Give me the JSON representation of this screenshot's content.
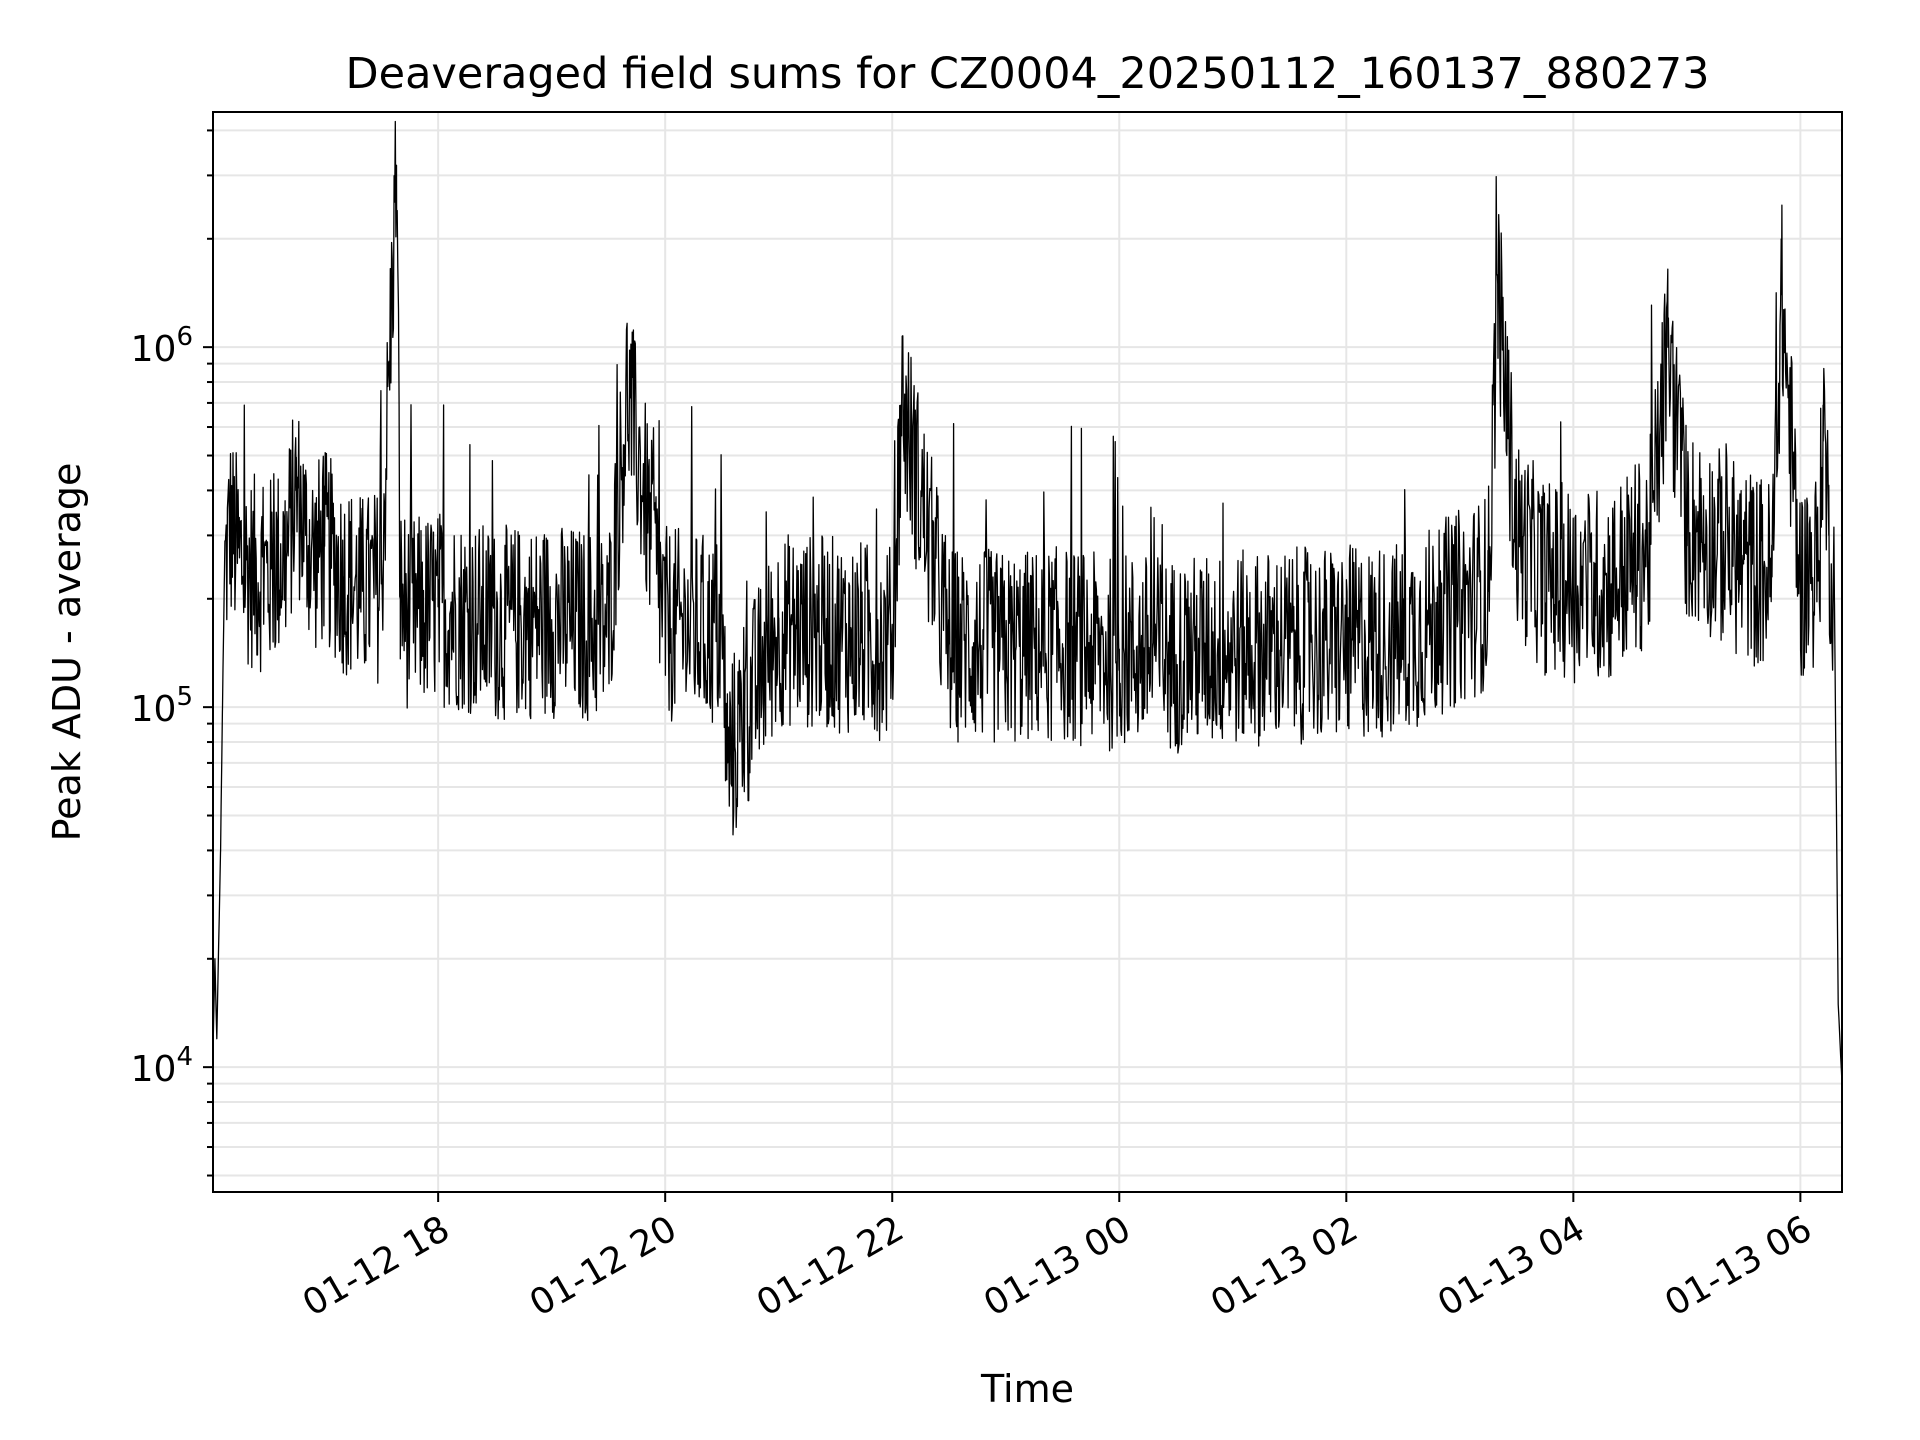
{
  "chart_data": {
    "type": "line",
    "title": "Deaveraged field sums for CZ0004_20250112_160137_880273",
    "xlabel": "Time",
    "ylabel": "Peak ADU - average",
    "x_tick_labels": [
      "01-12 18",
      "01-12 20",
      "01-12 22",
      "01-13 00",
      "01-13 02",
      "01-13 04",
      "01-13 06"
    ],
    "y_tick_labels": [
      {
        "base": "10",
        "exp": "4"
      },
      {
        "base": "10",
        "exp": "5"
      },
      {
        "base": "10",
        "exp": "6"
      }
    ],
    "x_range": [
      "2025-01-12 16:01",
      "2025-01-13 06:22"
    ],
    "y_range": [
      4500,
      4500000
    ],
    "y_scale": "log",
    "grid": true,
    "line_color": "#000000",
    "grid_color": "#e6e6e6",
    "series": [
      {
        "x": [
          "2025-01-12 16:01",
          "2025-01-12 16:02",
          "2025-01-12 16:03",
          "2025-01-12 16:05",
          "2025-01-12 16:06",
          "2025-01-12 16:07",
          "2025-01-12 16:10",
          "2025-01-12 16:15",
          "2025-01-12 16:20",
          "2025-01-12 16:30",
          "2025-01-12 16:40",
          "2025-01-12 16:45",
          "2025-01-12 16:50",
          "2025-01-12 16:55",
          "2025-01-12 17:00",
          "2025-01-12 17:10",
          "2025-01-12 17:20",
          "2025-01-12 17:30",
          "2025-01-12 17:38",
          "2025-01-12 17:40",
          "2025-01-12 17:45",
          "2025-01-12 18:00",
          "2025-01-12 18:30",
          "2025-01-12 19:00",
          "2025-01-12 19:30",
          "2025-01-12 19:40",
          "2025-01-12 20:00",
          "2025-01-12 20:30",
          "2025-01-12 20:33",
          "2025-01-12 21:00",
          "2025-01-12 21:30",
          "2025-01-12 22:00",
          "2025-01-12 22:05",
          "2025-01-12 22:30",
          "2025-01-12 23:00",
          "2025-01-12 23:30",
          "2025-01-12 23:55",
          "2025-01-13 00:00",
          "2025-01-13 00:30",
          "2025-01-13 01:00",
          "2025-01-13 01:30",
          "2025-01-13 02:00",
          "2025-01-13 02:30",
          "2025-01-13 03:00",
          "2025-01-13 03:15",
          "2025-01-13 03:20",
          "2025-01-13 03:30",
          "2025-01-13 03:45",
          "2025-01-13 04:00",
          "2025-01-13 04:20",
          "2025-01-13 04:40",
          "2025-01-13 04:50",
          "2025-01-13 05:00",
          "2025-01-13 05:10",
          "2025-01-13 05:30",
          "2025-01-13 05:45",
          "2025-01-13 05:50",
          "2025-01-13 06:00",
          "2025-01-13 06:10",
          "2025-01-13 06:12",
          "2025-01-13 06:15",
          "2025-01-13 06:18",
          "2025-01-13 06:20",
          "2025-01-13 06:22"
        ],
        "y": [
          11000,
          20000,
          12000,
          40000,
          100000,
          230000,
          320000,
          260000,
          240000,
          230000,
          270000,
          400000,
          300000,
          260000,
          280000,
          230000,
          210000,
          220000,
          3200000,
          200000,
          180000,
          190000,
          170000,
          175000,
          165000,
          770000,
          170000,
          160000,
          70000,
          165000,
          160000,
          150000,
          720000,
          150000,
          145000,
          150000,
          140000,
          145000,
          140000,
          145000,
          148000,
          150000,
          155000,
          190000,
          210000,
          1500000,
          300000,
          230000,
          220000,
          220000,
          280000,
          1000000,
          320000,
          300000,
          250000,
          230000,
          1400000,
          220000,
          250000,
          690000,
          300000,
          200000,
          15000,
          9000
        ]
      }
    ]
  }
}
